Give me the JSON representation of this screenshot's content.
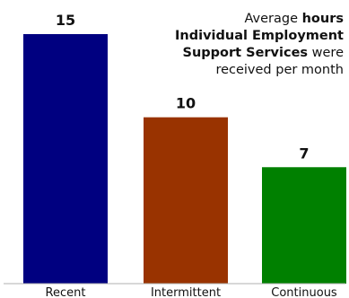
{
  "chart_data": {
    "type": "bar",
    "categories": [
      "Recent",
      "Intermittent",
      "Continuous"
    ],
    "values": [
      15,
      10,
      7
    ],
    "colors": [
      "#000080",
      "#993300",
      "#008000"
    ],
    "data_labels": [
      "15",
      "10",
      "7"
    ],
    "annotation": {
      "line1_prefix": "Average ",
      "line1_bold": "hours",
      "line2_bold": "Individual Employment",
      "line3_bold": "Support Services",
      "line3_suffix": " were",
      "line4": "received per month"
    },
    "ylim": [
      0,
      15
    ],
    "grid": false
  }
}
